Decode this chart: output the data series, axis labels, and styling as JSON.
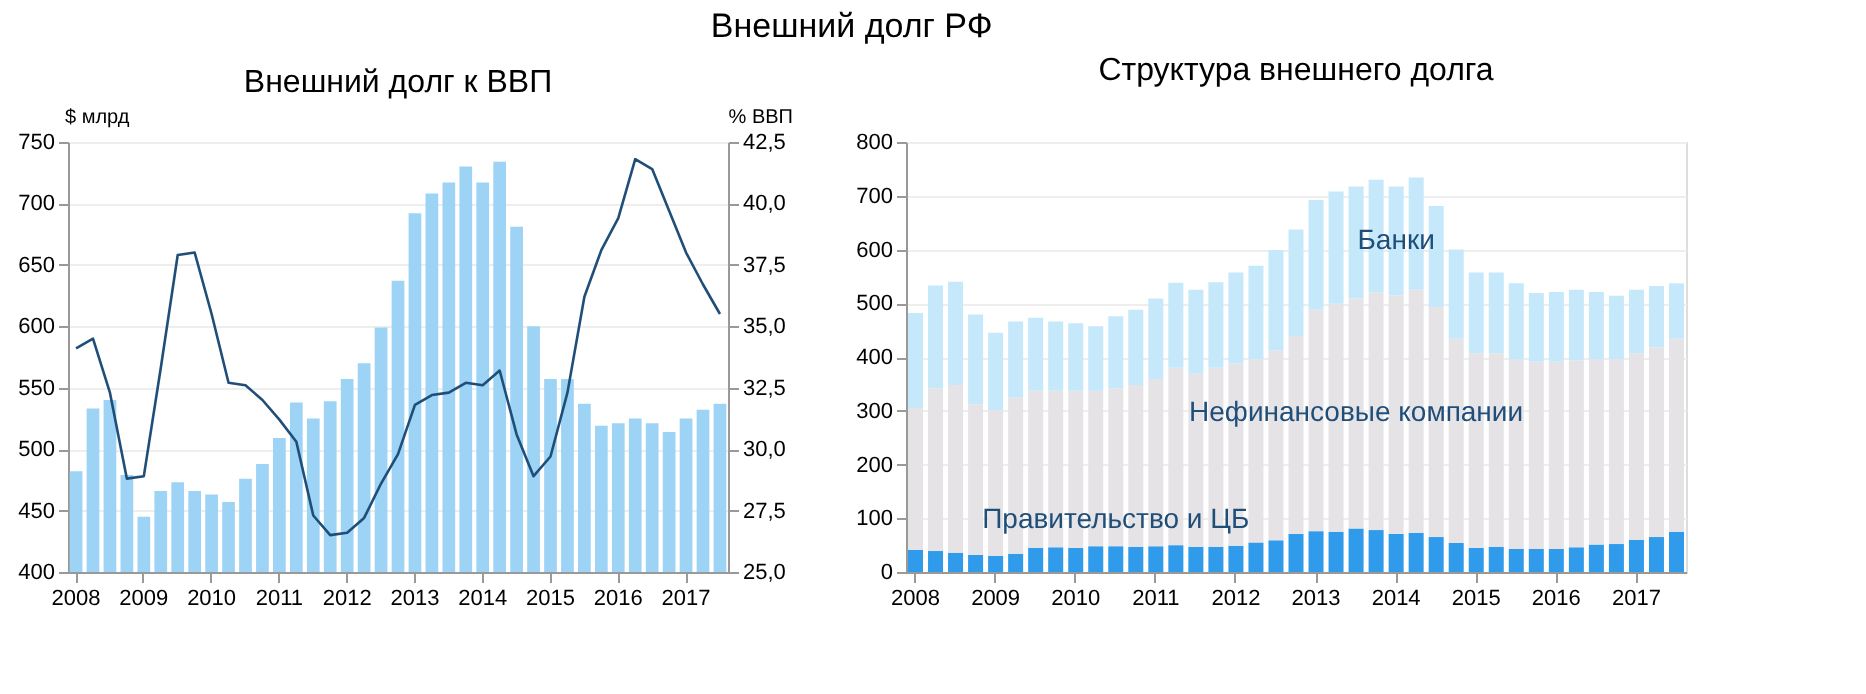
{
  "chart_data": [
    {
      "type": "bar",
      "title": "Внешний долг к ВВП",
      "annotations": [
        "Внешний долг РФ"
      ],
      "ylabel": "$ млрд",
      "y2label": "% ВВП",
      "categories": [
        "2008",
        null,
        null,
        null,
        "2009",
        null,
        null,
        null,
        "2010",
        null,
        null,
        null,
        "2011",
        null,
        null,
        null,
        "2012",
        null,
        null,
        null,
        "2013",
        null,
        null,
        null,
        "2014",
        null,
        null,
        null,
        "2015",
        null,
        null,
        null,
        "2016",
        null,
        null,
        null,
        "2017",
        null,
        null
      ],
      "series": [
        {
          "type": "bar",
          "color": "#9dd3f5",
          "values": [
            482,
            533,
            540,
            479,
            445,
            466,
            473,
            466,
            463,
            457,
            476,
            488,
            509,
            538,
            525,
            539,
            557,
            570,
            599,
            637,
            692,
            708,
            717,
            730,
            717,
            734,
            681,
            600,
            557,
            557,
            537,
            519,
            521,
            525,
            521,
            514,
            525,
            532,
            537
          ]
        },
        {
          "type": "line",
          "axis": "y2",
          "color": "#1f4e79",
          "values": [
            34.1,
            34.5,
            32.3,
            28.8,
            28.9,
            33.3,
            37.9,
            38.0,
            35.5,
            32.7,
            32.6,
            32.0,
            31.2,
            30.3,
            27.3,
            26.5,
            26.6,
            27.2,
            28.6,
            29.8,
            31.8,
            32.2,
            32.3,
            32.7,
            32.6,
            33.2,
            30.6,
            28.9,
            29.7,
            32.3,
            36.2,
            38.1,
            39.4,
            41.8,
            41.4,
            39.7,
            38.0,
            36.7,
            35.5
          ]
        }
      ],
      "ylim": [
        400,
        750
      ],
      "yticks": [
        400,
        450,
        500,
        550,
        600,
        650,
        700,
        750
      ],
      "y2lim": [
        25,
        42.5
      ],
      "y2ticks": [
        {
          "value": 25,
          "label": "25,0"
        },
        {
          "value": 27.5,
          "label": "27,5"
        },
        {
          "value": 30,
          "label": "30,0"
        },
        {
          "value": 32.5,
          "label": "32,5"
        },
        {
          "value": 35,
          "label": "35,0"
        },
        {
          "value": 37.5,
          "label": "37,5"
        },
        {
          "value": 40,
          "label": "40,0"
        },
        {
          "value": 42.5,
          "label": "42,5"
        }
      ],
      "grid": "y",
      "marker": "none",
      "line_style": "solid"
    },
    {
      "type": "bar",
      "title": "Структура внешнего долга",
      "stacked": true,
      "categories": [
        "2008",
        null,
        null,
        null,
        "2009",
        null,
        null,
        null,
        "2010",
        null,
        null,
        null,
        "2011",
        null,
        null,
        null,
        "2012",
        null,
        null,
        null,
        "2013",
        null,
        null,
        null,
        "2014",
        null,
        null,
        null,
        "2015",
        null,
        null,
        null,
        "2016",
        null,
        null,
        null,
        "2017",
        null,
        null
      ],
      "series": [
        {
          "name": "Правительство и ЦБ",
          "color": "#2f9bea",
          "values": [
            41,
            39,
            36,
            32,
            30,
            34,
            45,
            46,
            45,
            48,
            48,
            47,
            48,
            50,
            47,
            47,
            49,
            55,
            59,
            71,
            76,
            75,
            81,
            78,
            71,
            73,
            65,
            54,
            45,
            47,
            43,
            43,
            43,
            46,
            51,
            52,
            60,
            65,
            75
          ]
        },
        {
          "name": "Нефинансовые компании",
          "color": "#e6e3e6",
          "values": [
            264,
            303,
            312,
            280,
            271,
            290,
            292,
            291,
            292,
            289,
            294,
            301,
            311,
            330,
            322,
            333,
            339,
            341,
            353,
            368,
            412,
            424,
            428,
            442,
            444,
            452,
            428,
            380,
            362,
            360,
            353,
            348,
            348,
            348,
            345,
            344,
            347,
            353,
            359
          ]
        },
        {
          "name": "Банки",
          "color": "#c6e8fb",
          "values": [
            177,
            191,
            192,
            167,
            144,
            142,
            136,
            129,
            126,
            120,
            134,
            140,
            150,
            158,
            156,
            159,
            169,
            174,
            187,
            198,
            204,
            209,
            208,
            210,
            202,
            209,
            188,
            166,
            150,
            150,
            141,
            128,
            130,
            131,
            125,
            118,
            118,
            114,
            103
          ]
        }
      ],
      "ylim": [
        0,
        800
      ],
      "yticks": [
        0,
        100,
        200,
        300,
        400,
        500,
        600,
        700,
        800
      ],
      "grid": "y"
    }
  ]
}
